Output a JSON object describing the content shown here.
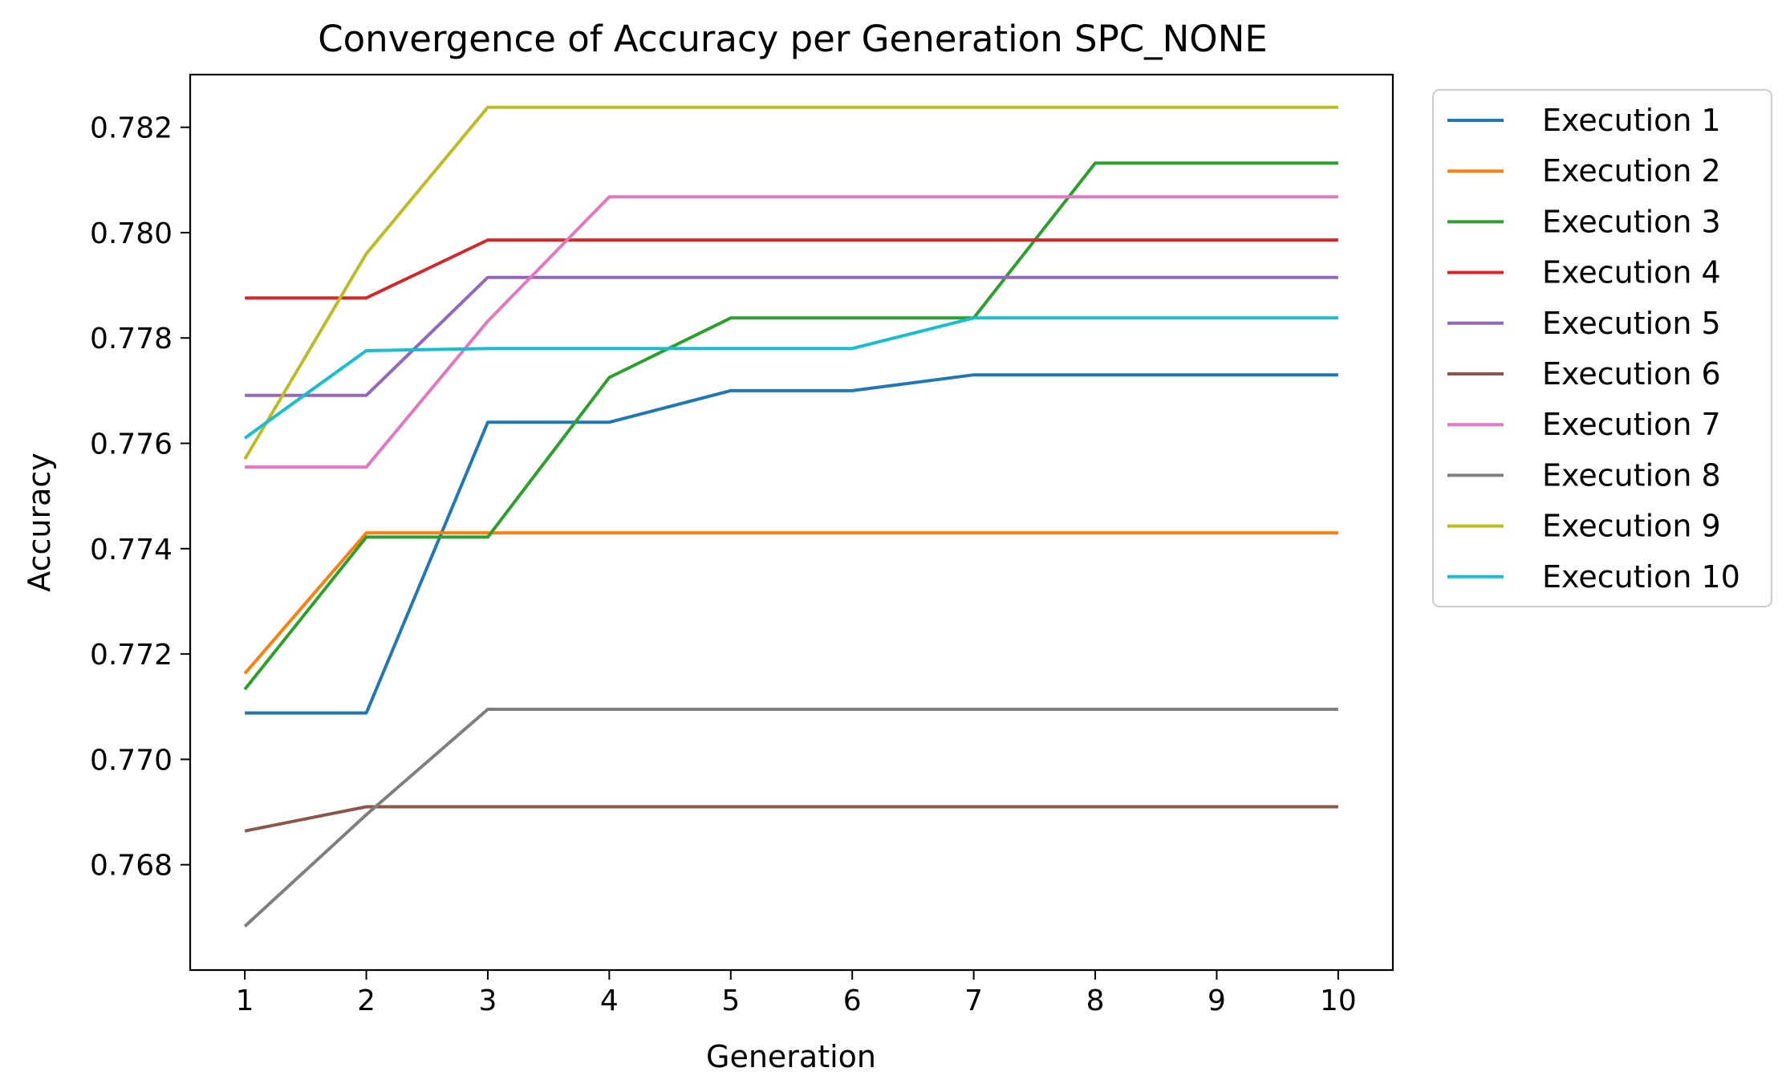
{
  "chart_data": {
    "type": "line",
    "title": "Convergence of Accuracy per Generation SPC_NONE",
    "xlabel": "Generation",
    "ylabel": "Accuracy",
    "x": [
      1,
      2,
      3,
      4,
      5,
      6,
      7,
      8,
      9,
      10
    ],
    "xticks": [
      "1",
      "2",
      "3",
      "4",
      "5",
      "6",
      "7",
      "8",
      "9",
      "10"
    ],
    "yticks": [
      "0.768",
      "0.770",
      "0.772",
      "0.774",
      "0.776",
      "0.778",
      "0.780",
      "0.782"
    ],
    "xlim": [
      0.55,
      10.45
    ],
    "ylim": [
      0.766,
      0.783
    ],
    "grid": false,
    "legend_position": "outside-right-top",
    "series": [
      {
        "name": "Execution 1",
        "color": "#1f77b4",
        "values": [
          0.77088,
          0.77088,
          0.7764,
          0.7764,
          0.777,
          0.777,
          0.7773,
          0.7773,
          0.7773,
          0.7773
        ]
      },
      {
        "name": "Execution 2",
        "color": "#ff7f0e",
        "values": [
          0.77163,
          0.7743,
          0.7743,
          0.7743,
          0.7743,
          0.7743,
          0.7743,
          0.7743,
          0.7743,
          0.7743
        ]
      },
      {
        "name": "Execution 3",
        "color": "#2ca02c",
        "values": [
          0.77133,
          0.77422,
          0.77422,
          0.77725,
          0.77838,
          0.77838,
          0.77838,
          0.78132,
          0.78132,
          0.78132
        ]
      },
      {
        "name": "Execution 4",
        "color": "#d62728",
        "values": [
          0.77876,
          0.77876,
          0.77986,
          0.77986,
          0.77986,
          0.77986,
          0.77986,
          0.77986,
          0.77986,
          0.77986
        ]
      },
      {
        "name": "Execution 5",
        "color": "#9467bd",
        "values": [
          0.77691,
          0.77691,
          0.77915,
          0.77915,
          0.77915,
          0.77915,
          0.77915,
          0.77915,
          0.77915,
          0.77915
        ]
      },
      {
        "name": "Execution 6",
        "color": "#8c564b",
        "values": [
          0.76864,
          0.7691,
          0.7691,
          0.7691,
          0.7691,
          0.7691,
          0.7691,
          0.7691,
          0.7691,
          0.7691
        ]
      },
      {
        "name": "Execution 7",
        "color": "#e377c2",
        "values": [
          0.77555,
          0.77555,
          0.77832,
          0.78068,
          0.78068,
          0.78068,
          0.78068,
          0.78068,
          0.78068,
          0.78068
        ]
      },
      {
        "name": "Execution 8",
        "color": "#7f7f7f",
        "values": [
          0.76683,
          0.76895,
          0.77095,
          0.77095,
          0.77095,
          0.77095,
          0.77095,
          0.77095,
          0.77095,
          0.77095
        ]
      },
      {
        "name": "Execution 9",
        "color": "#bcbd22",
        "values": [
          0.7757,
          0.7796,
          0.78238,
          0.78238,
          0.78238,
          0.78238,
          0.78238,
          0.78238,
          0.78238,
          0.78238
        ]
      },
      {
        "name": "Execution 10",
        "color": "#17becf",
        "values": [
          0.7761,
          0.77776,
          0.7778,
          0.7778,
          0.7778,
          0.7778,
          0.77838,
          0.77838,
          0.77838,
          0.77838
        ]
      }
    ]
  }
}
